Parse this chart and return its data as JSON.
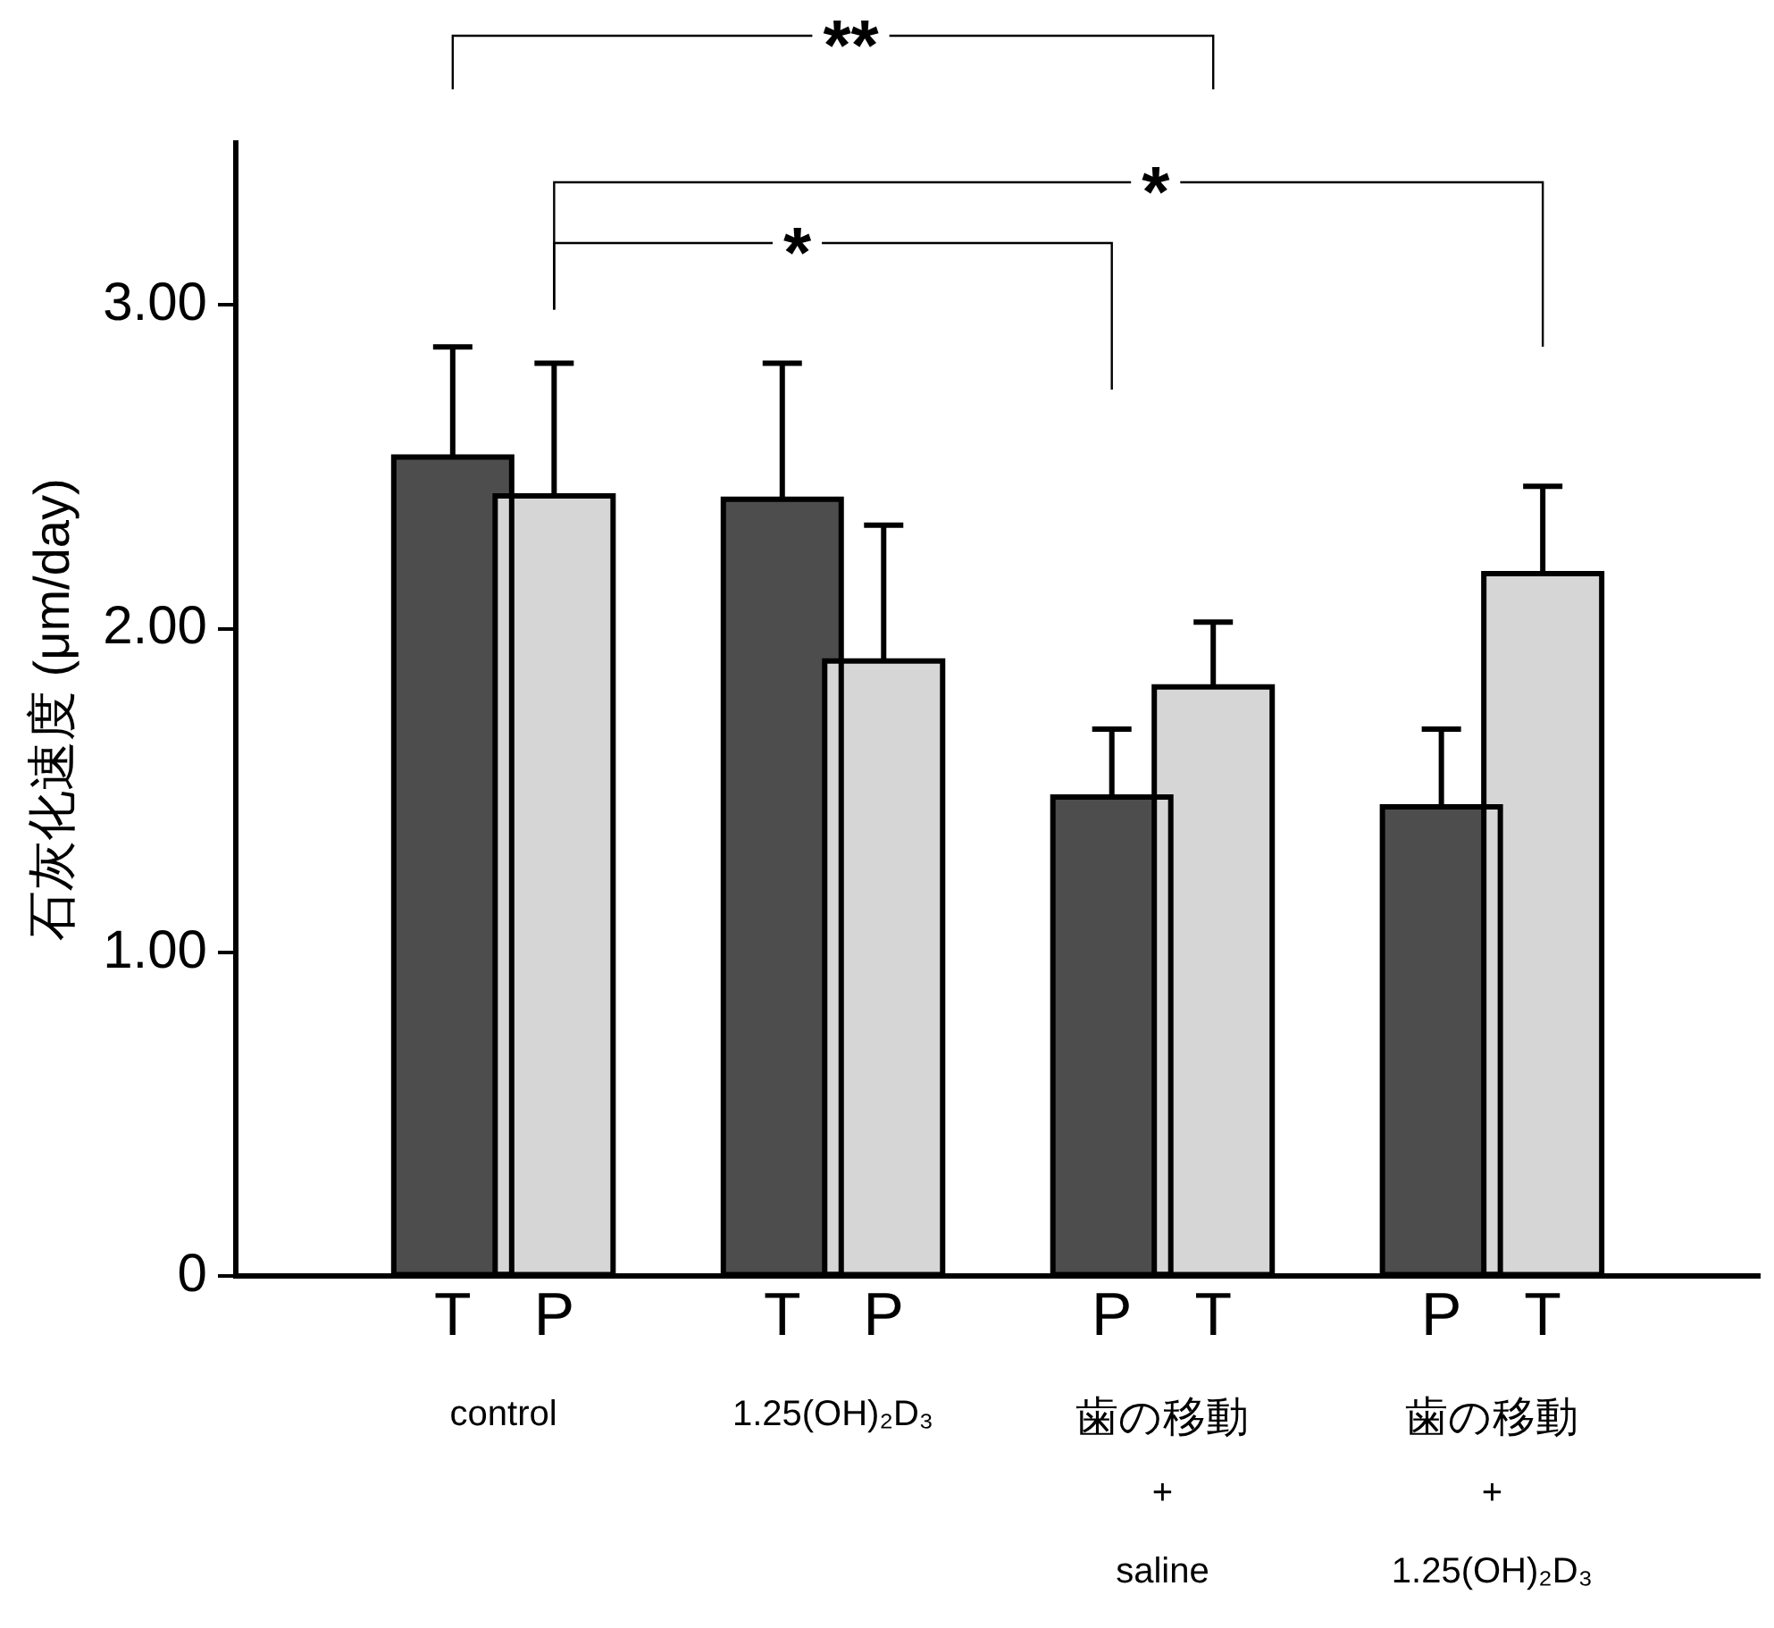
{
  "chart_data": {
    "type": "bar",
    "ylabel": "石灰化速度 (μm/day)",
    "categories": [
      "T",
      "P",
      "T",
      "P",
      "P",
      "T",
      "P",
      "T"
    ],
    "values": [
      2.53,
      2.41,
      2.4,
      1.9,
      1.48,
      1.82,
      1.45,
      2.17
    ],
    "errors": [
      0.34,
      0.41,
      0.42,
      0.42,
      0.21,
      0.2,
      0.24,
      0.27
    ],
    "colors": [
      "#4d4d4d",
      "#d6d6d6",
      "#4d4d4d",
      "#d6d6d6",
      "#4d4d4d",
      "#d6d6d6",
      "#4d4d4d",
      "#d6d6d6"
    ],
    "ylim": [
      0,
      3.5
    ],
    "yticks": [
      0,
      {
        "value": 1,
        "label": "1.00"
      },
      {
        "value": 2,
        "label": "2.00"
      },
      {
        "value": 3,
        "label": "3.00"
      }
    ],
    "grid": false,
    "legend": false,
    "annotations": [
      "control",
      "1.25(OH)₂D₃",
      "歯の移動\n+\nsaline",
      "歯の移動\n+\n1.25(OH)₂D₃",
      "**",
      "*",
      "*"
    ]
  }
}
